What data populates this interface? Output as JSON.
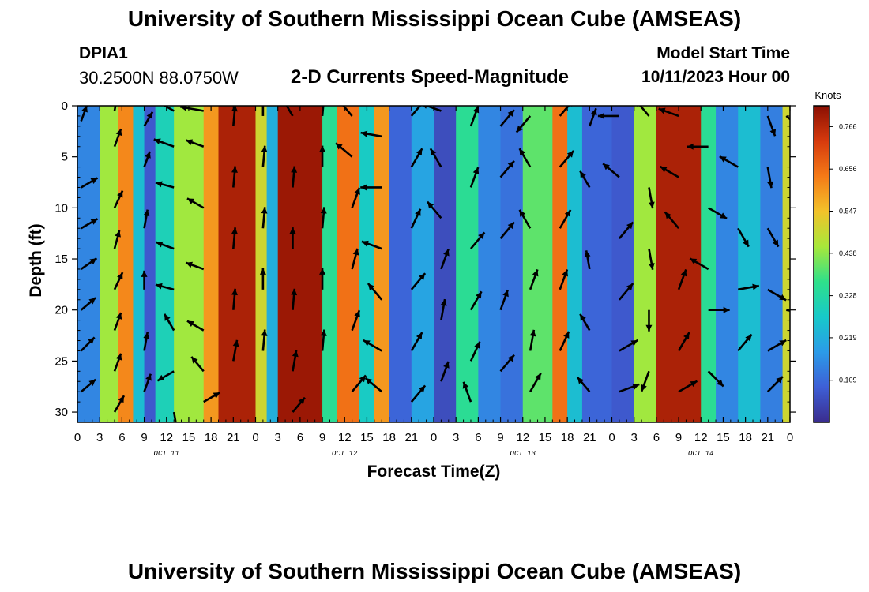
{
  "header": {
    "title": "University of Southern Mississippi Ocean Cube (AMSEAS)",
    "station": "DPIA1",
    "coords": "30.2500N  88.0750W",
    "subtitle": "2-D Currents Speed-Magnitude",
    "start_label": "Model Start Time",
    "start_value": "10/11/2023 Hour 00",
    "footer_title": "University of Southern Mississippi Ocean Cube (AMSEAS)"
  },
  "chart_data": {
    "type": "heatmap",
    "title": "2-D Currents Speed-Magnitude",
    "xlabel": "Forecast Time(Z)",
    "ylabel": "Depth (ft)",
    "x_ticks": [
      "0",
      "3",
      "6",
      "9",
      "12",
      "15",
      "18",
      "21",
      "0",
      "3",
      "6",
      "9",
      "12",
      "15",
      "18",
      "21",
      "0",
      "3",
      "6",
      "9",
      "12",
      "15",
      "18",
      "21",
      "0",
      "3",
      "6",
      "9",
      "12",
      "15",
      "18",
      "21",
      "0"
    ],
    "day_labels": [
      "OCT 11",
      "OCT 12",
      "OCT 13",
      "OCT 14"
    ],
    "xlim_hours": [
      0,
      96
    ],
    "y_ticks": [
      0,
      5,
      10,
      15,
      20,
      25,
      30
    ],
    "ylim": [
      0,
      31
    ],
    "colorbar": {
      "unit": "Knots",
      "min": 0.0,
      "max": 0.82,
      "labels": [
        "0.766",
        "0.656",
        "0.547",
        "0.438",
        "0.328",
        "0.219",
        "0.109"
      ],
      "colors": [
        "#3a2c8e",
        "#3e5fd6",
        "#2b9be8",
        "#17c9c9",
        "#2fe08a",
        "#a8e83a",
        "#f2c22a",
        "#f57a17",
        "#d63a0d",
        "#8a0f03"
      ]
    },
    "speed_bands": [
      {
        "hours": [
          0,
          3
        ],
        "speed": 0.15
      },
      {
        "hours": [
          3,
          5.5
        ],
        "speed": 0.45
      },
      {
        "hours": [
          5.5,
          7.5
        ],
        "speed": 0.62
      },
      {
        "hours": [
          7.5,
          9
        ],
        "speed": 0.25
      },
      {
        "hours": [
          9,
          10.5
        ],
        "speed": 0.08
      },
      {
        "hours": [
          10.5,
          13
        ],
        "speed": 0.3
      },
      {
        "hours": [
          13,
          17
        ],
        "speed": 0.45
      },
      {
        "hours": [
          17,
          19
        ],
        "speed": 0.6
      },
      {
        "hours": [
          19,
          24
        ],
        "speed": 0.78
      },
      {
        "hours": [
          24,
          25.5
        ],
        "speed": 0.5
      },
      {
        "hours": [
          25.5,
          27
        ],
        "speed": 0.22
      },
      {
        "hours": [
          27,
          33
        ],
        "speed": 0.8
      },
      {
        "hours": [
          33,
          35
        ],
        "speed": 0.35
      },
      {
        "hours": [
          35,
          38
        ],
        "speed": 0.65
      },
      {
        "hours": [
          38,
          40
        ],
        "speed": 0.28
      },
      {
        "hours": [
          40,
          42
        ],
        "speed": 0.6
      },
      {
        "hours": [
          42,
          45
        ],
        "speed": 0.1
      },
      {
        "hours": [
          45,
          48
        ],
        "speed": 0.2
      },
      {
        "hours": [
          48,
          51
        ],
        "speed": 0.06
      },
      {
        "hours": [
          51,
          54
        ],
        "speed": 0.35
      },
      {
        "hours": [
          54,
          57
        ],
        "speed": 0.15
      },
      {
        "hours": [
          57,
          60
        ],
        "speed": 0.12
      },
      {
        "hours": [
          60,
          64
        ],
        "speed": 0.4
      },
      {
        "hours": [
          64,
          66
        ],
        "speed": 0.65
      },
      {
        "hours": [
          66,
          68
        ],
        "speed": 0.25
      },
      {
        "hours": [
          68,
          72
        ],
        "speed": 0.1
      },
      {
        "hours": [
          72,
          75
        ],
        "speed": 0.08
      },
      {
        "hours": [
          75,
          78
        ],
        "speed": 0.45
      },
      {
        "hours": [
          78,
          84
        ],
        "speed": 0.78
      },
      {
        "hours": [
          84,
          86
        ],
        "speed": 0.35
      },
      {
        "hours": [
          86,
          89
        ],
        "speed": 0.15
      },
      {
        "hours": [
          89,
          92
        ],
        "speed": 0.25
      },
      {
        "hours": [
          92,
          95
        ],
        "speed": 0.14
      },
      {
        "hours": [
          95,
          96
        ],
        "speed": 0.5
      }
    ],
    "vectors": [
      {
        "t": 0.5,
        "d": 1.5,
        "dir": 20,
        "len": 0.7
      },
      {
        "t": 0.5,
        "d": 8,
        "dir": 60,
        "len": 0.8
      },
      {
        "t": 0.5,
        "d": 12,
        "dir": 60,
        "len": 0.8
      },
      {
        "t": 0.5,
        "d": 16,
        "dir": 55,
        "len": 0.8
      },
      {
        "t": 0.5,
        "d": 20,
        "dir": 50,
        "len": 0.8
      },
      {
        "t": 0.5,
        "d": 24,
        "dir": 45,
        "len": 0.8
      },
      {
        "t": 0.5,
        "d": 28,
        "dir": 50,
        "len": 0.8
      },
      {
        "t": 5,
        "d": 0.5,
        "dir": 10,
        "len": 0.9
      },
      {
        "t": 5,
        "d": 4,
        "dir": 20,
        "len": 0.8
      },
      {
        "t": 5,
        "d": 10,
        "dir": 25,
        "len": 0.8
      },
      {
        "t": 5,
        "d": 14,
        "dir": 15,
        "len": 0.8
      },
      {
        "t": 5,
        "d": 18,
        "dir": 25,
        "len": 0.8
      },
      {
        "t": 5,
        "d": 22,
        "dir": 20,
        "len": 0.8
      },
      {
        "t": 5,
        "d": 26,
        "dir": 20,
        "len": 0.8
      },
      {
        "t": 5,
        "d": 30,
        "dir": 30,
        "len": 0.8
      },
      {
        "t": 9,
        "d": 2,
        "dir": 30,
        "len": 0.7
      },
      {
        "t": 9,
        "d": 6,
        "dir": 20,
        "len": 0.7
      },
      {
        "t": 9,
        "d": 12,
        "dir": 10,
        "len": 0.8
      },
      {
        "t": 9,
        "d": 18,
        "dir": 0,
        "len": 0.8
      },
      {
        "t": 9,
        "d": 24,
        "dir": 10,
        "len": 0.8
      },
      {
        "t": 9,
        "d": 28,
        "dir": 20,
        "len": 0.8
      },
      {
        "t": 13,
        "d": 0.5,
        "dir": 300,
        "len": 0.9
      },
      {
        "t": 13,
        "d": 4,
        "dir": 290,
        "len": 0.9
      },
      {
        "t": 13,
        "d": 8,
        "dir": 285,
        "len": 0.8
      },
      {
        "t": 13,
        "d": 14,
        "dir": 290,
        "len": 0.8
      },
      {
        "t": 13,
        "d": 18,
        "dir": 285,
        "len": 0.8
      },
      {
        "t": 13,
        "d": 22,
        "dir": 330,
        "len": 0.8
      },
      {
        "t": 13,
        "d": 26,
        "dir": 240,
        "len": 0.8
      },
      {
        "t": 13,
        "d": 30,
        "dir": 170,
        "len": 0.8
      },
      {
        "t": 17,
        "d": 0.5,
        "dir": 280,
        "len": 1.0
      },
      {
        "t": 17,
        "d": 4,
        "dir": 290,
        "len": 0.8
      },
      {
        "t": 17,
        "d": 10,
        "dir": 300,
        "len": 0.8
      },
      {
        "t": 17,
        "d": 16,
        "dir": 290,
        "len": 0.8
      },
      {
        "t": 17,
        "d": 22,
        "dir": 300,
        "len": 0.8
      },
      {
        "t": 17,
        "d": 26,
        "dir": 320,
        "len": 0.8
      },
      {
        "t": 17,
        "d": 29,
        "dir": 60,
        "len": 0.8
      },
      {
        "t": 21,
        "d": 2,
        "dir": 5,
        "len": 0.9
      },
      {
        "t": 21,
        "d": 8,
        "dir": 5,
        "len": 0.9
      },
      {
        "t": 21,
        "d": 14,
        "dir": 5,
        "len": 0.9
      },
      {
        "t": 21,
        "d": 20,
        "dir": 5,
        "len": 0.9
      },
      {
        "t": 21,
        "d": 25,
        "dir": 10,
        "len": 0.9
      },
      {
        "t": 25,
        "d": 1,
        "dir": 0,
        "len": 0.9
      },
      {
        "t": 25,
        "d": 6,
        "dir": 5,
        "len": 0.9
      },
      {
        "t": 25,
        "d": 12,
        "dir": 5,
        "len": 0.9
      },
      {
        "t": 25,
        "d": 18,
        "dir": 0,
        "len": 0.9
      },
      {
        "t": 25,
        "d": 24,
        "dir": 5,
        "len": 0.9
      },
      {
        "t": 29,
        "d": 1,
        "dir": 330,
        "len": 0.9
      },
      {
        "t": 29,
        "d": 8,
        "dir": 5,
        "len": 0.9
      },
      {
        "t": 29,
        "d": 14,
        "dir": 0,
        "len": 0.9
      },
      {
        "t": 29,
        "d": 20,
        "dir": 5,
        "len": 0.9
      },
      {
        "t": 29,
        "d": 26,
        "dir": 10,
        "len": 0.9
      },
      {
        "t": 29,
        "d": 30,
        "dir": 40,
        "len": 0.8
      },
      {
        "t": 33,
        "d": 1,
        "dir": 5,
        "len": 0.9
      },
      {
        "t": 33,
        "d": 6,
        "dir": 0,
        "len": 0.9
      },
      {
        "t": 33,
        "d": 12,
        "dir": 5,
        "len": 0.9
      },
      {
        "t": 33,
        "d": 18,
        "dir": 0,
        "len": 0.9
      },
      {
        "t": 33,
        "d": 24,
        "dir": 5,
        "len": 0.9
      },
      {
        "t": 37,
        "d": 1,
        "dir": 320,
        "len": 0.9
      },
      {
        "t": 37,
        "d": 5,
        "dir": 310,
        "len": 0.9
      },
      {
        "t": 37,
        "d": 10,
        "dir": 20,
        "len": 0.9
      },
      {
        "t": 37,
        "d": 16,
        "dir": 15,
        "len": 0.9
      },
      {
        "t": 37,
        "d": 22,
        "dir": 20,
        "len": 0.9
      },
      {
        "t": 37,
        "d": 28,
        "dir": 40,
        "len": 0.9
      },
      {
        "t": 41,
        "d": 3,
        "dir": 280,
        "len": 0.9
      },
      {
        "t": 41,
        "d": 8,
        "dir": 270,
        "len": 0.9
      },
      {
        "t": 41,
        "d": 14,
        "dir": 290,
        "len": 0.9
      },
      {
        "t": 41,
        "d": 19,
        "dir": 320,
        "len": 0.9
      },
      {
        "t": 41,
        "d": 24,
        "dir": 300,
        "len": 0.9
      },
      {
        "t": 41,
        "d": 28,
        "dir": 310,
        "len": 0.9
      },
      {
        "t": 45,
        "d": 1,
        "dir": 40,
        "len": 0.9
      },
      {
        "t": 45,
        "d": 6,
        "dir": 30,
        "len": 0.9
      },
      {
        "t": 45,
        "d": 12,
        "dir": 25,
        "len": 0.9
      },
      {
        "t": 45,
        "d": 18,
        "dir": 40,
        "len": 0.9
      },
      {
        "t": 45,
        "d": 24,
        "dir": 30,
        "len": 0.9
      },
      {
        "t": 45,
        "d": 29,
        "dir": 40,
        "len": 0.9
      },
      {
        "t": 49,
        "d": 0.5,
        "dir": 290,
        "len": 0.9
      },
      {
        "t": 49,
        "d": 6,
        "dir": 330,
        "len": 0.9
      },
      {
        "t": 49,
        "d": 11,
        "dir": 320,
        "len": 0.9
      },
      {
        "t": 49,
        "d": 16,
        "dir": 20,
        "len": 0.9
      },
      {
        "t": 49,
        "d": 21,
        "dir": 10,
        "len": 0.9
      },
      {
        "t": 49,
        "d": 27,
        "dir": 20,
        "len": 0.9
      },
      {
        "t": 53,
        "d": 2,
        "dir": 20,
        "len": 0.9
      },
      {
        "t": 53,
        "d": 8,
        "dir": 20,
        "len": 0.9
      },
      {
        "t": 53,
        "d": 14,
        "dir": 40,
        "len": 0.9
      },
      {
        "t": 53,
        "d": 20,
        "dir": 30,
        "len": 0.9
      },
      {
        "t": 53,
        "d": 25,
        "dir": 25,
        "len": 0.9
      },
      {
        "t": 53,
        "d": 29,
        "dir": 340,
        "len": 0.9
      },
      {
        "t": 57,
        "d": 2,
        "dir": 40,
        "len": 0.9
      },
      {
        "t": 57,
        "d": 7,
        "dir": 40,
        "len": 0.9
      },
      {
        "t": 57,
        "d": 13,
        "dir": 40,
        "len": 0.9
      },
      {
        "t": 57,
        "d": 20,
        "dir": 20,
        "len": 0.9
      },
      {
        "t": 57,
        "d": 26,
        "dir": 40,
        "len": 0.9
      },
      {
        "t": 61,
        "d": 1,
        "dir": 220,
        "len": 0.9
      },
      {
        "t": 61,
        "d": 6,
        "dir": 330,
        "len": 0.9
      },
      {
        "t": 61,
        "d": 12,
        "dir": 330,
        "len": 0.9
      },
      {
        "t": 61,
        "d": 18,
        "dir": 20,
        "len": 0.9
      },
      {
        "t": 61,
        "d": 24,
        "dir": 10,
        "len": 0.9
      },
      {
        "t": 61,
        "d": 28,
        "dir": 30,
        "len": 0.9
      },
      {
        "t": 65,
        "d": 1,
        "dir": 40,
        "len": 0.9
      },
      {
        "t": 65,
        "d": 6,
        "dir": 40,
        "len": 0.9
      },
      {
        "t": 65,
        "d": 12,
        "dir": 30,
        "len": 0.9
      },
      {
        "t": 65,
        "d": 18,
        "dir": 20,
        "len": 0.9
      },
      {
        "t": 65,
        "d": 24,
        "dir": 25,
        "len": 0.9
      },
      {
        "t": 69,
        "d": 2,
        "dir": 20,
        "len": 0.8
      },
      {
        "t": 69,
        "d": 8,
        "dir": 330,
        "len": 0.8
      },
      {
        "t": 69,
        "d": 16,
        "dir": 350,
        "len": 0.8
      },
      {
        "t": 69,
        "d": 22,
        "dir": 330,
        "len": 0.8
      },
      {
        "t": 69,
        "d": 28,
        "dir": 320,
        "len": 0.8
      },
      {
        "t": 73,
        "d": 1,
        "dir": 270,
        "len": 0.9
      },
      {
        "t": 73,
        "d": 7,
        "dir": 310,
        "len": 0.9
      },
      {
        "t": 73,
        "d": 13,
        "dir": 40,
        "len": 0.9
      },
      {
        "t": 73,
        "d": 19,
        "dir": 40,
        "len": 0.9
      },
      {
        "t": 73,
        "d": 24,
        "dir": 60,
        "len": 0.9
      },
      {
        "t": 73,
        "d": 28,
        "dir": 70,
        "len": 0.9
      },
      {
        "t": 77,
        "d": 1,
        "dir": 320,
        "len": 0.9
      },
      {
        "t": 77,
        "d": 8,
        "dir": 170,
        "len": 0.9
      },
      {
        "t": 77,
        "d": 14,
        "dir": 170,
        "len": 0.9
      },
      {
        "t": 77,
        "d": 20,
        "dir": 180,
        "len": 0.9
      },
      {
        "t": 77,
        "d": 26,
        "dir": 200,
        "len": 0.9
      },
      {
        "t": 81,
        "d": 1,
        "dir": 290,
        "len": 0.9
      },
      {
        "t": 81,
        "d": 7,
        "dir": 300,
        "len": 0.9
      },
      {
        "t": 81,
        "d": 12,
        "dir": 320,
        "len": 0.9
      },
      {
        "t": 81,
        "d": 18,
        "dir": 20,
        "len": 0.9
      },
      {
        "t": 81,
        "d": 24,
        "dir": 30,
        "len": 0.9
      },
      {
        "t": 81,
        "d": 28,
        "dir": 60,
        "len": 0.9
      },
      {
        "t": 85,
        "d": 4,
        "dir": 270,
        "len": 0.9
      },
      {
        "t": 85,
        "d": 10,
        "dir": 120,
        "len": 0.9
      },
      {
        "t": 85,
        "d": 16,
        "dir": 300,
        "len": 0.9
      },
      {
        "t": 85,
        "d": 20,
        "dir": 90,
        "len": 0.9
      },
      {
        "t": 85,
        "d": 26,
        "dir": 135,
        "len": 0.9
      },
      {
        "t": 89,
        "d": 6,
        "dir": 300,
        "len": 0.9
      },
      {
        "t": 89,
        "d": 12,
        "dir": 150,
        "len": 0.9
      },
      {
        "t": 89,
        "d": 18,
        "dir": 80,
        "len": 0.9
      },
      {
        "t": 89,
        "d": 24,
        "dir": 40,
        "len": 0.9
      },
      {
        "t": 93,
        "d": 1,
        "dir": 160,
        "len": 0.9
      },
      {
        "t": 93,
        "d": 6,
        "dir": 170,
        "len": 0.9
      },
      {
        "t": 93,
        "d": 12,
        "dir": 150,
        "len": 0.9
      },
      {
        "t": 93,
        "d": 18,
        "dir": 120,
        "len": 0.9
      },
      {
        "t": 93,
        "d": 24,
        "dir": 60,
        "len": 0.9
      },
      {
        "t": 93,
        "d": 28,
        "dir": 45,
        "len": 0.9
      },
      {
        "t": 95.5,
        "d": 1,
        "dir": 130,
        "len": 0.7
      },
      {
        "t": 95.5,
        "d": 20,
        "dir": 100,
        "len": 0.7
      }
    ]
  }
}
